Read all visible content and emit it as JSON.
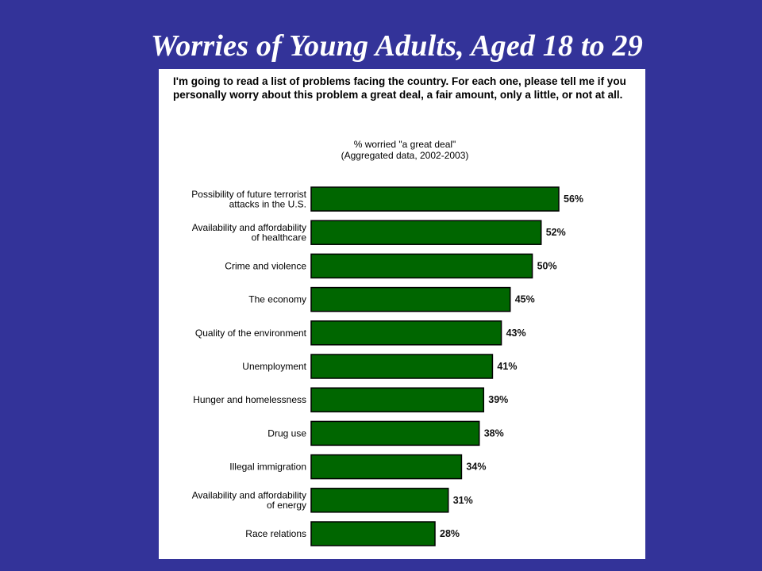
{
  "slide": {
    "title": "Worries of Young Adults, Aged 18 to 29"
  },
  "chart_data": {
    "type": "bar",
    "orientation": "horizontal",
    "question": "I'm going to read a list of problems facing the country. For each one, please tell me if you personally worry about this problem a great deal, a fair amount, only a little, or not at all.",
    "subtitle_lines": [
      "% worried \"a great deal\"",
      "(Aggregated data, 2002-2003)"
    ],
    "categories": [
      [
        "Possibility of future terrorist",
        "attacks in the U.S."
      ],
      [
        "Availability and affordability",
        "of healthcare"
      ],
      [
        "Crime and violence"
      ],
      [
        "The economy"
      ],
      [
        "Quality of the environment"
      ],
      [
        "Unemployment"
      ],
      [
        "Hunger and homelessness"
      ],
      [
        "Drug use"
      ],
      [
        "Illegal immigration"
      ],
      [
        "Availability and affordability",
        "of energy"
      ],
      [
        "Race relations"
      ]
    ],
    "values": [
      56,
      52,
      50,
      45,
      43,
      41,
      39,
      38,
      34,
      31,
      28
    ],
    "value_suffix": "%",
    "bar_color": "#006600",
    "bar_border_color": "#000000",
    "xlim": [
      0,
      56
    ],
    "grid": false,
    "legend": "none"
  }
}
